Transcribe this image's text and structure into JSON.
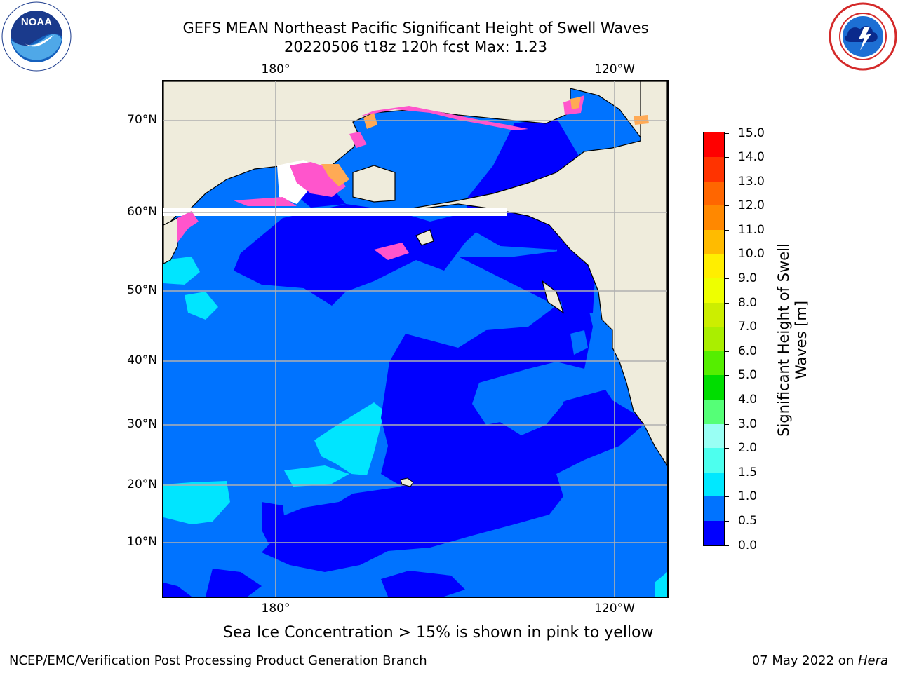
{
  "header": {
    "title_line1": "GEFS MEAN Northeast Pacific Significant Height of Swell Waves",
    "title_line2": "20220506 t18z 120h fcst   Max: 1.23"
  },
  "logos": {
    "left": {
      "text": "NOAA",
      "ring_text": "NATIONAL OCEANIC AND ATMOSPHERIC ADMINISTRATION · U.S. DEPARTMENT OF COMMERCE"
    },
    "right": {
      "ring_text": "NATIONAL WEATHER SERVICE"
    }
  },
  "map": {
    "lat_labels": [
      "70°N",
      "60°N",
      "50°N",
      "40°N",
      "30°N",
      "20°N",
      "10°N"
    ],
    "lon_labels_top": [
      "180°",
      "120°W"
    ],
    "lon_labels_bottom": [
      "180°",
      "120°W"
    ],
    "colors": {
      "land": "#efecdc",
      "ice_white": "#ffffff",
      "deep": "#0000ff",
      "mid": "#0073ff",
      "light": "#00e5ff",
      "ice_pink": "#ff55cc",
      "ice_orange": "#ffaa55",
      "ice_yellow": "#ffee33",
      "grid": "#b0b0b0"
    }
  },
  "colorbar": {
    "title": "Significant Height of Swell Waves [m]",
    "title_line1": "Significant Height of Swell",
    "title_line2": "Waves [m]",
    "ticks": [
      "0.0",
      "0.5",
      "1.0",
      "1.5",
      "2.0",
      "3.0",
      "4.0",
      "5.0",
      "6.0",
      "7.0",
      "8.0",
      "9.0",
      "10.0",
      "11.0",
      "12.0",
      "13.0",
      "14.0",
      "15.0"
    ],
    "colors": [
      "#0000ff",
      "#0073ff",
      "#00e8ff",
      "#4dffee",
      "#99fff4",
      "#55ff77",
      "#00dd00",
      "#55ee00",
      "#aaee00",
      "#ccee00",
      "#eeff00",
      "#ffee00",
      "#ffbb00",
      "#ff8800",
      "#ff6600",
      "#ff3300",
      "#ff0000"
    ]
  },
  "note": "Sea Ice Concentration > 15% is shown in pink to yellow",
  "footer": {
    "left": "NCEP/EMC/Verification Post Processing Product Generation Branch",
    "right_prefix": "07 May 2022 on ",
    "right_host": "Hera"
  }
}
